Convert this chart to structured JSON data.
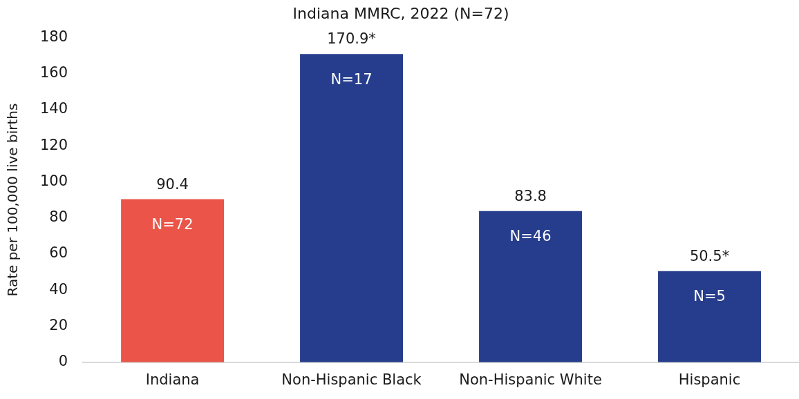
{
  "chart_data": {
    "type": "bar",
    "title": "Indiana MMRC, 2022 (N=72)",
    "ylabel": "Rate per 100,000 live births",
    "categories": [
      "Indiana",
      "Non-Hispanic Black",
      "Non-Hispanic White",
      "Hispanic"
    ],
    "values": [
      90.4,
      170.9,
      83.8,
      50.5
    ],
    "colors": [
      "#eb5448",
      "#253d8c",
      "#253d8c",
      "#253d8c"
    ],
    "value_labels": [
      "90.4",
      "170.9*",
      "83.8",
      "50.5*"
    ],
    "annotations": [
      {
        "text": "N=72",
        "x": "Indiana",
        "y": 90.4
      },
      {
        "text": "N=17",
        "x": "Non-Hispanic Black",
        "y": 170.9
      },
      {
        "text": "N=46",
        "x": "Non-Hispanic White",
        "y": 83.8
      },
      {
        "text": "N=5",
        "x": "Hispanic",
        "y": 50.5
      }
    ],
    "ylim": [
      0,
      180
    ],
    "yticks": [
      0,
      20,
      40,
      60,
      80,
      100,
      120,
      140,
      160,
      180
    ],
    "grid": false,
    "legend": false
  }
}
